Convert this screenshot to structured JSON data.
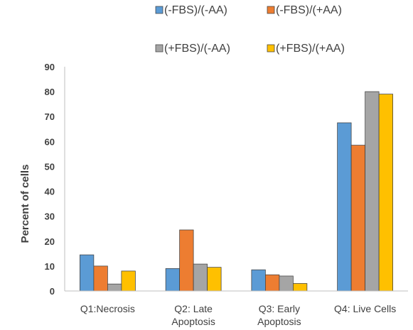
{
  "chart_data": {
    "type": "bar",
    "categories": [
      [
        "Q1:Necrosis"
      ],
      [
        "Q2: Late",
        "Apoptosis"
      ],
      [
        "Q3: Early",
        "Apoptosis"
      ],
      [
        "Q4: Live Cells"
      ]
    ],
    "series": [
      {
        "name": "(-FBS)/(-AA)",
        "color": "#5B9BD5",
        "values": [
          14.5,
          9,
          8.5,
          67.5
        ]
      },
      {
        "name": "(-FBS)/(+AA)",
        "color": "#ED7D31",
        "values": [
          10,
          24.5,
          6.5,
          58.5
        ]
      },
      {
        "name": "(+FBS)/(-AA)",
        "color": "#A5A5A5",
        "values": [
          2.8,
          10.8,
          6,
          80
        ]
      },
      {
        "name": "(+FBS)/(+AA)",
        "color": "#FFC000",
        "values": [
          8,
          9.5,
          3,
          79
        ]
      }
    ],
    "ylabel": "Percent of cells",
    "ylim": [
      0,
      90
    ],
    "yticks": [
      0,
      10,
      20,
      30,
      40,
      50,
      60,
      70,
      80,
      90
    ],
    "legend_position": "top",
    "grid": false
  }
}
